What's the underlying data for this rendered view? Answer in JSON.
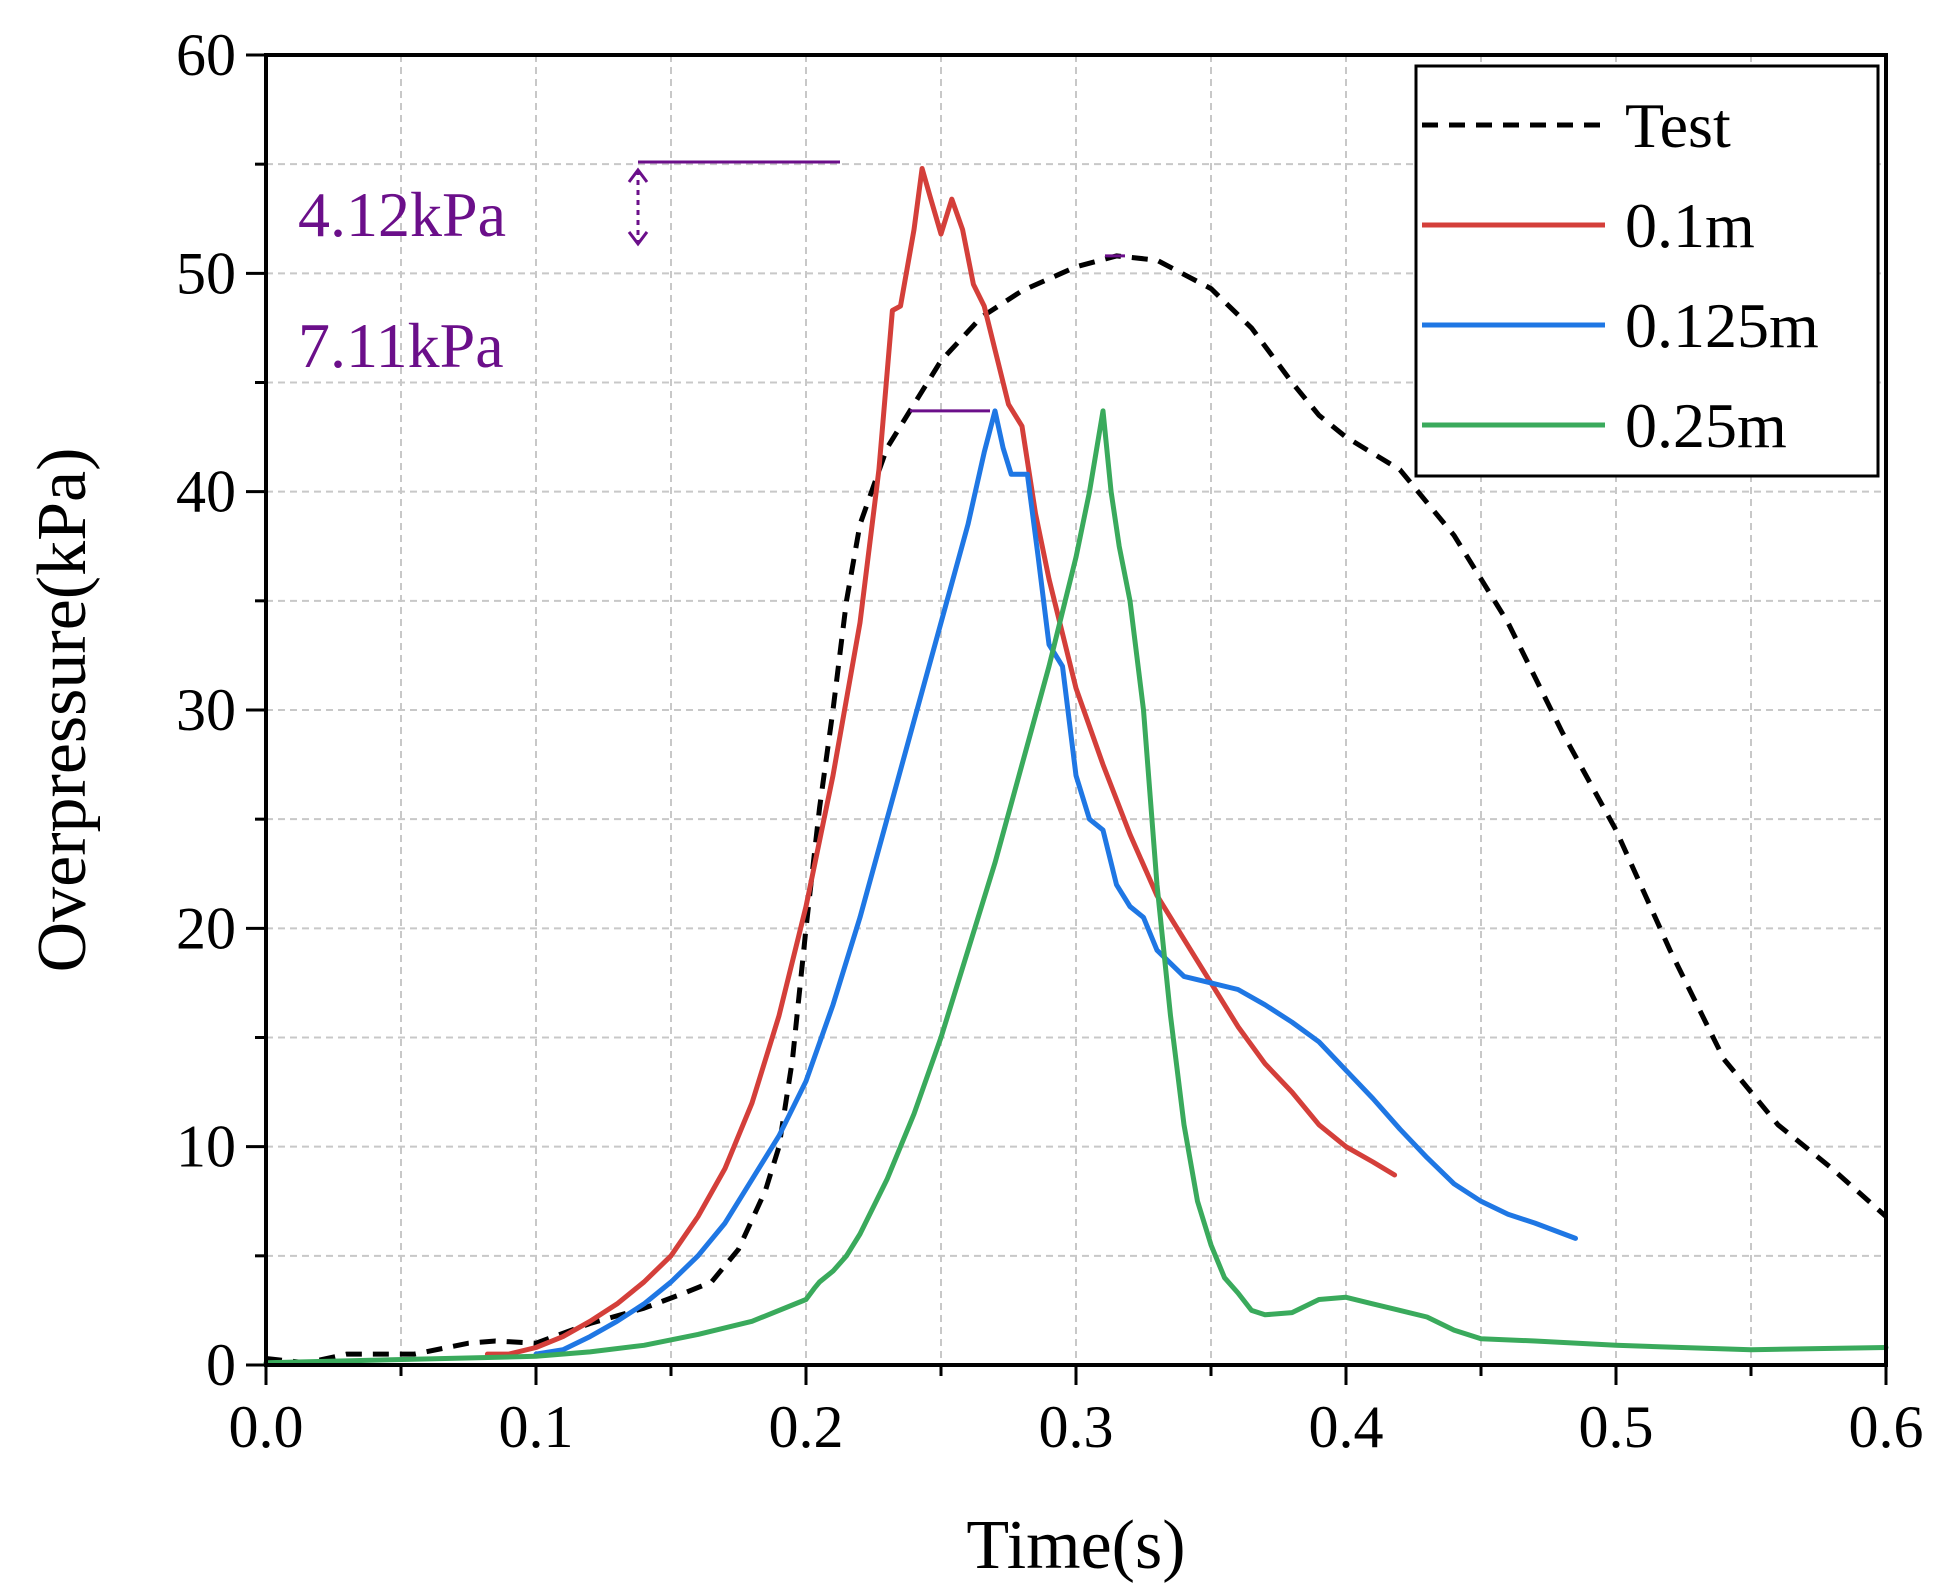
{
  "chart_data": {
    "type": "line",
    "title": "",
    "xlabel": "Time(s)",
    "ylabel": "Overpressure(kPa)",
    "xlim": [
      0.0,
      0.6
    ],
    "ylim": [
      0,
      60
    ],
    "xticks": [
      "0.0",
      "0.1",
      "0.2",
      "0.3",
      "0.4",
      "0.5",
      "0.6"
    ],
    "yticks": [
      "0",
      "10",
      "20",
      "30",
      "40",
      "50",
      "60"
    ],
    "grid": true,
    "legend_position": "top-right",
    "series": [
      {
        "name": "Test",
        "color": "#000000",
        "style": "dashed",
        "points": [
          [
            0.0,
            0.3
          ],
          [
            0.015,
            0.1
          ],
          [
            0.03,
            0.5
          ],
          [
            0.055,
            0.5
          ],
          [
            0.075,
            1.0
          ],
          [
            0.085,
            1.1
          ],
          [
            0.1,
            1.0
          ],
          [
            0.12,
            1.9
          ],
          [
            0.14,
            2.6
          ],
          [
            0.155,
            3.3
          ],
          [
            0.165,
            3.8
          ],
          [
            0.175,
            5.3
          ],
          [
            0.185,
            8.0
          ],
          [
            0.19,
            10.0
          ],
          [
            0.195,
            14.0
          ],
          [
            0.2,
            20.0
          ],
          [
            0.205,
            25.5
          ],
          [
            0.21,
            30.0
          ],
          [
            0.215,
            35.0
          ],
          [
            0.22,
            38.5
          ],
          [
            0.23,
            42.0
          ],
          [
            0.24,
            44.0
          ],
          [
            0.25,
            46.0
          ],
          [
            0.265,
            48.0
          ],
          [
            0.28,
            49.2
          ],
          [
            0.3,
            50.3
          ],
          [
            0.315,
            50.8
          ],
          [
            0.33,
            50.6
          ],
          [
            0.35,
            49.3
          ],
          [
            0.365,
            47.5
          ],
          [
            0.38,
            45.0
          ],
          [
            0.39,
            43.5
          ],
          [
            0.4,
            42.5
          ],
          [
            0.42,
            41.0
          ],
          [
            0.44,
            38.0
          ],
          [
            0.46,
            34.0
          ],
          [
            0.48,
            29.0
          ],
          [
            0.5,
            24.5
          ],
          [
            0.52,
            19.0
          ],
          [
            0.54,
            14.0
          ],
          [
            0.56,
            11.0
          ],
          [
            0.58,
            9.0
          ],
          [
            0.6,
            6.8
          ]
        ]
      },
      {
        "name": "0.1m",
        "color": "#d43f3a",
        "style": "solid",
        "points": [
          [
            0.082,
            0.5
          ],
          [
            0.09,
            0.5
          ],
          [
            0.1,
            0.8
          ],
          [
            0.11,
            1.3
          ],
          [
            0.12,
            2.0
          ],
          [
            0.13,
            2.8
          ],
          [
            0.14,
            3.8
          ],
          [
            0.15,
            5.0
          ],
          [
            0.16,
            6.8
          ],
          [
            0.17,
            9.0
          ],
          [
            0.18,
            12.0
          ],
          [
            0.19,
            16.0
          ],
          [
            0.2,
            21.0
          ],
          [
            0.21,
            27.0
          ],
          [
            0.22,
            34.0
          ],
          [
            0.227,
            41.0
          ],
          [
            0.232,
            48.3
          ],
          [
            0.235,
            48.5
          ],
          [
            0.24,
            52.0
          ],
          [
            0.243,
            54.8
          ],
          [
            0.246,
            53.5
          ],
          [
            0.25,
            51.8
          ],
          [
            0.254,
            53.4
          ],
          [
            0.258,
            52.0
          ],
          [
            0.262,
            49.5
          ],
          [
            0.266,
            48.5
          ],
          [
            0.27,
            46.5
          ],
          [
            0.275,
            44.0
          ],
          [
            0.28,
            43.0
          ],
          [
            0.285,
            39.0
          ],
          [
            0.29,
            36.0
          ],
          [
            0.3,
            31.0
          ],
          [
            0.31,
            27.5
          ],
          [
            0.32,
            24.3
          ],
          [
            0.33,
            21.5
          ],
          [
            0.34,
            19.5
          ],
          [
            0.35,
            17.5
          ],
          [
            0.36,
            15.5
          ],
          [
            0.37,
            13.8
          ],
          [
            0.38,
            12.5
          ],
          [
            0.39,
            11.0
          ],
          [
            0.4,
            10.0
          ],
          [
            0.41,
            9.3
          ],
          [
            0.418,
            8.7
          ]
        ]
      },
      {
        "name": "0.125m",
        "color": "#1f77e4",
        "style": "solid",
        "points": [
          [
            0.1,
            0.5
          ],
          [
            0.11,
            0.7
          ],
          [
            0.12,
            1.3
          ],
          [
            0.13,
            2.0
          ],
          [
            0.14,
            2.8
          ],
          [
            0.15,
            3.8
          ],
          [
            0.16,
            5.0
          ],
          [
            0.17,
            6.5
          ],
          [
            0.18,
            8.5
          ],
          [
            0.19,
            10.5
          ],
          [
            0.2,
            13.0
          ],
          [
            0.21,
            16.5
          ],
          [
            0.22,
            20.5
          ],
          [
            0.23,
            25.0
          ],
          [
            0.24,
            29.5
          ],
          [
            0.25,
            34.0
          ],
          [
            0.26,
            38.5
          ],
          [
            0.266,
            41.8
          ],
          [
            0.27,
            43.7
          ],
          [
            0.273,
            42.0
          ],
          [
            0.276,
            40.8
          ],
          [
            0.282,
            40.8
          ],
          [
            0.286,
            37.0
          ],
          [
            0.29,
            33.0
          ],
          [
            0.295,
            32.0
          ],
          [
            0.3,
            27.0
          ],
          [
            0.305,
            25.0
          ],
          [
            0.31,
            24.5
          ],
          [
            0.315,
            22.0
          ],
          [
            0.32,
            21.0
          ],
          [
            0.325,
            20.5
          ],
          [
            0.33,
            19.0
          ],
          [
            0.34,
            17.8
          ],
          [
            0.35,
            17.5
          ],
          [
            0.36,
            17.2
          ],
          [
            0.37,
            16.5
          ],
          [
            0.38,
            15.7
          ],
          [
            0.39,
            14.8
          ],
          [
            0.4,
            13.5
          ],
          [
            0.41,
            12.2
          ],
          [
            0.42,
            10.8
          ],
          [
            0.43,
            9.5
          ],
          [
            0.44,
            8.3
          ],
          [
            0.45,
            7.5
          ],
          [
            0.46,
            6.9
          ],
          [
            0.47,
            6.5
          ],
          [
            0.485,
            5.8
          ]
        ]
      },
      {
        "name": "0.25m",
        "color": "#3aaa5c",
        "style": "solid",
        "points": [
          [
            0.0,
            0.1
          ],
          [
            0.1,
            0.4
          ],
          [
            0.12,
            0.6
          ],
          [
            0.14,
            0.9
          ],
          [
            0.16,
            1.4
          ],
          [
            0.18,
            2.0
          ],
          [
            0.2,
            3.0
          ],
          [
            0.203,
            3.5
          ],
          [
            0.205,
            3.8
          ],
          [
            0.21,
            4.3
          ],
          [
            0.215,
            5.0
          ],
          [
            0.22,
            6.0
          ],
          [
            0.23,
            8.5
          ],
          [
            0.24,
            11.5
          ],
          [
            0.25,
            15.0
          ],
          [
            0.26,
            19.0
          ],
          [
            0.27,
            23.0
          ],
          [
            0.28,
            27.5
          ],
          [
            0.29,
            32.0
          ],
          [
            0.3,
            37.0
          ],
          [
            0.305,
            40.0
          ],
          [
            0.31,
            43.7
          ],
          [
            0.313,
            40.0
          ],
          [
            0.316,
            37.5
          ],
          [
            0.32,
            35.0
          ],
          [
            0.325,
            30.0
          ],
          [
            0.33,
            22.0
          ],
          [
            0.335,
            16.0
          ],
          [
            0.34,
            11.0
          ],
          [
            0.345,
            7.5
          ],
          [
            0.35,
            5.5
          ],
          [
            0.355,
            4.0
          ],
          [
            0.36,
            3.3
          ],
          [
            0.365,
            2.5
          ],
          [
            0.37,
            2.3
          ],
          [
            0.38,
            2.4
          ],
          [
            0.39,
            3.0
          ],
          [
            0.4,
            3.1
          ],
          [
            0.41,
            2.8
          ],
          [
            0.42,
            2.5
          ],
          [
            0.43,
            2.2
          ],
          [
            0.44,
            1.6
          ],
          [
            0.45,
            1.2
          ],
          [
            0.47,
            1.1
          ],
          [
            0.5,
            0.9
          ],
          [
            0.55,
            0.7
          ],
          [
            0.6,
            0.8
          ]
        ]
      }
    ],
    "annotations": [
      {
        "text": "4.12kPa",
        "color": "#6b0f8a"
      },
      {
        "text": "7.11kPa",
        "color": "#6b0f8a"
      }
    ]
  }
}
